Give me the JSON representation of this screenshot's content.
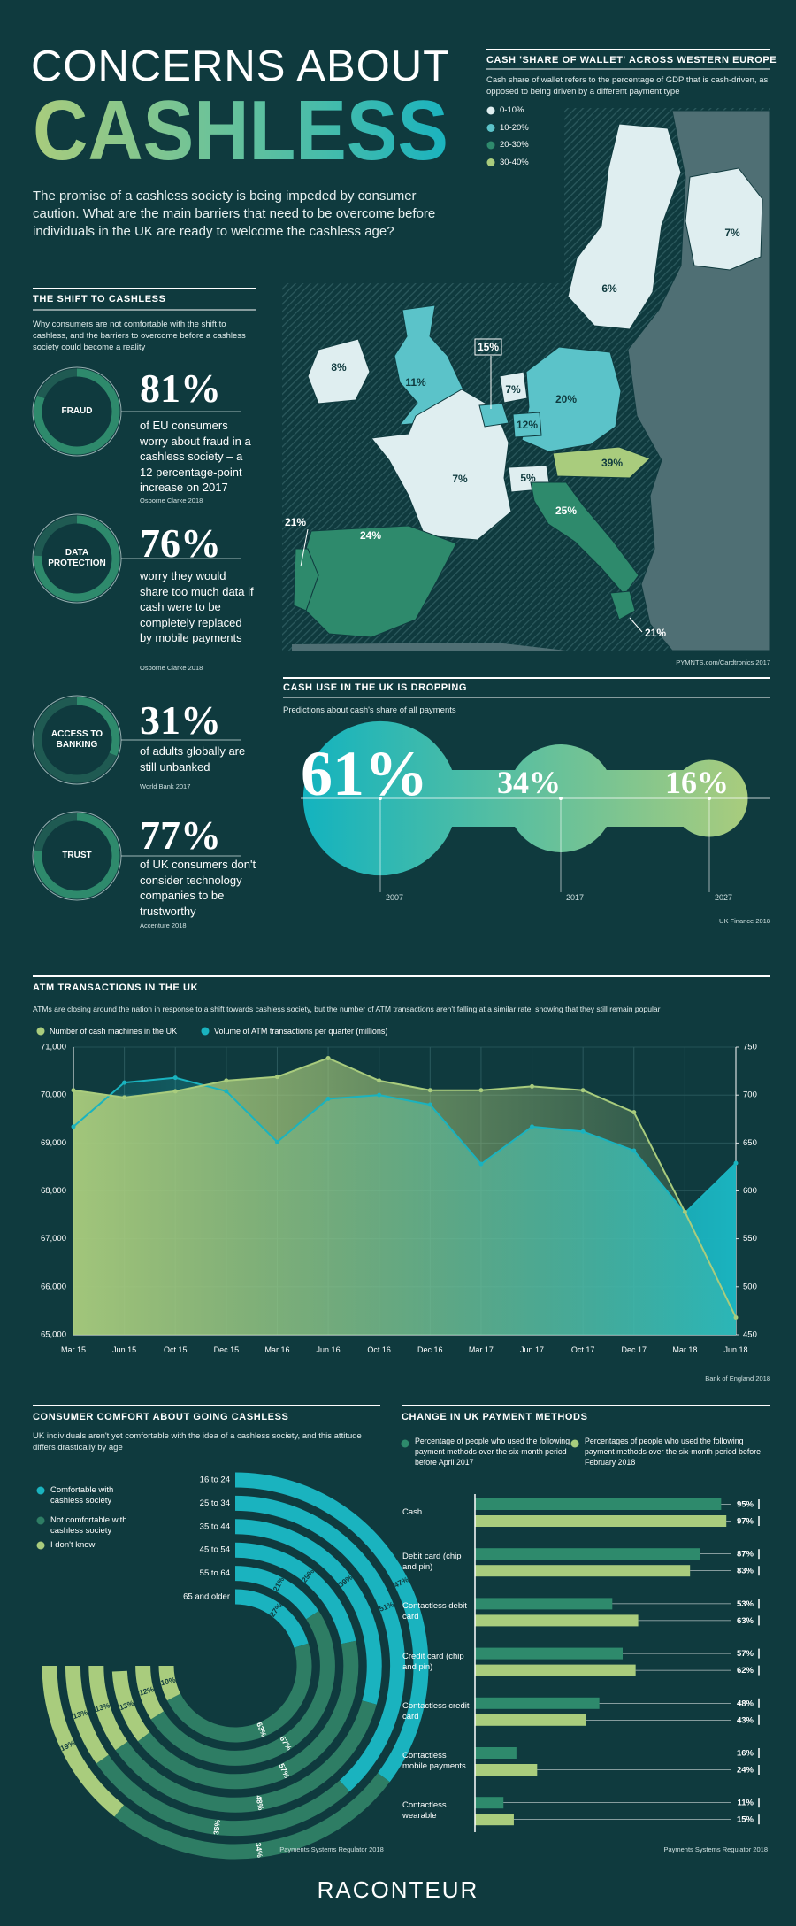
{
  "header": {
    "title_line1": "CONCERNS ABOUT",
    "title_line2": "CASHLESS",
    "intro": "The promise of a cashless society is being impeded by consumer caution. What are the main barriers that need to be overcome before individuals in the UK are ready to welcome the cashless age?"
  },
  "shift": {
    "title": "THE SHIFT TO CASHLESS",
    "subtitle": "Why consumers are not comfortable with the shift to cashless, and the barriers to overcome before a cashless society could become a reality",
    "stats": [
      {
        "label": "FRAUD",
        "value": 81,
        "value_label": "81%",
        "text": "of EU consumers worry about fraud in a cashless society – a 12 percentage-point increase on 2017",
        "source": "Osborne Clarke 2018"
      },
      {
        "label": "DATA PROTECTION",
        "value": 76,
        "value_label": "76%",
        "text": "worry they would share too much data if cash were to be completely replaced by mobile payments",
        "source": "Osborne Clarke 2018"
      },
      {
        "label": "ACCESS TO BANKING",
        "value": 31,
        "value_label": "31%",
        "text": "of adults globally are still unbanked",
        "source": "World Bank 2017"
      },
      {
        "label": "TRUST",
        "value": 77,
        "value_label": "77%",
        "text": "of UK consumers don't consider technology companies to be trustworthy",
        "source": "Accenture 2018"
      }
    ]
  },
  "map": {
    "title": "CASH 'SHARE OF WALLET' ACROSS WESTERN EUROPE",
    "description": "Cash share of wallet refers to the percentage of GDP that is cash-driven, as opposed to being driven by a different payment type",
    "legend": [
      {
        "label": "0-10%",
        "color": "#dfeef0"
      },
      {
        "label": "10-20%",
        "color": "#5bc3c9"
      },
      {
        "label": "20-30%",
        "color": "#2e8a6c"
      },
      {
        "label": "30-40%",
        "color": "#a9cc7d"
      }
    ],
    "labels": [
      "7%",
      "6%",
      "8%",
      "11%",
      "15%",
      "7%",
      "20%",
      "12%",
      "39%",
      "7%",
      "5%",
      "25%",
      "21%",
      "24%",
      "21%"
    ],
    "source": "PYMNTS.com/Cardtronics 2017"
  },
  "chart_data": [
    {
      "type": "blob",
      "title": "CASH USE IN THE UK IS DROPPING",
      "subtitle": "Predictions about cash's share of all payments",
      "categories": [
        "2007",
        "2017",
        "2027"
      ],
      "values": [
        61,
        34,
        16
      ],
      "value_labels": [
        "61%",
        "34%",
        "16%"
      ],
      "colors": [
        "#13b3bf",
        "#a9cc7d"
      ],
      "source": "UK Finance 2018"
    },
    {
      "type": "line",
      "title": "ATM TRANSACTIONS IN THE UK",
      "subtitle": "ATMs are closing around the nation in response to a shift towards cashless society, but the number of ATM transactions aren't falling at a similar rate, showing that they still remain popular",
      "categories": [
        "Mar 15",
        "Jun 15",
        "Oct 15",
        "Dec 15",
        "Mar 16",
        "Jun 16",
        "Oct 16",
        "Dec 16",
        "Mar 17",
        "Jun 17",
        "Oct 17",
        "Dec 17",
        "Mar 18",
        "Jun 18"
      ],
      "series": [
        {
          "name": "Number of cash machines in the UK",
          "color": "#a9cc7d",
          "values": [
            70100,
            69950,
            70080,
            70300,
            70380,
            70770,
            70300,
            70100,
            70100,
            70180,
            70100,
            69640,
            67560,
            65360
          ]
        },
        {
          "name": "Volume of ATM transactions per quarter (millions)",
          "color": "#1ab3bf",
          "axis": "y2",
          "values": [
            667,
            713,
            718,
            704,
            651,
            696,
            700,
            690,
            628,
            667,
            662,
            642,
            577,
            629
          ]
        }
      ],
      "ylim": [
        65000,
        71000
      ],
      "yticks": [
        {
          "value": 65000,
          "label": "65,000"
        },
        {
          "value": 66000,
          "label": "66,000"
        },
        {
          "value": 67000,
          "label": "67,000"
        },
        {
          "value": 68000,
          "label": "68,000"
        },
        {
          "value": 69000,
          "label": "69,000"
        },
        {
          "value": 70000,
          "label": "70,000"
        },
        {
          "value": 71000,
          "label": "71,000"
        }
      ],
      "y2lim": [
        450,
        750
      ],
      "y2ticks": [
        450,
        500,
        550,
        600,
        650,
        700,
        750
      ],
      "grid": true,
      "source": "Bank of England 2018"
    },
    {
      "type": "radial_bar",
      "title": "CONSUMER COMFORT ABOUT GOING CASHLESS",
      "subtitle": "UK individuals aren't yet comfortable with the idea of a cashless society, and this attitude differs drastically by age",
      "categories": [
        "16 to 24",
        "25 to 34",
        "35 to 44",
        "45 to 54",
        "55 to 64",
        "65 and older"
      ],
      "series": [
        {
          "name": "Comfortable with cashless society",
          "color": "#1ab3bf",
          "values": [
            47,
            51,
            39,
            29,
            21,
            27
          ],
          "value_labels": [
            "47%",
            "51%",
            "39%",
            "29%",
            "21%",
            "27%"
          ]
        },
        {
          "name": "Not comfortable with cashless society",
          "color": "#2e7d64",
          "values": [
            34,
            36,
            48,
            57,
            67,
            63
          ],
          "value_labels": [
            "34%",
            "36%",
            "48%",
            "57%",
            "67%",
            "63%"
          ]
        },
        {
          "name": "I don't know",
          "color": "#a9cc7d",
          "values": [
            19,
            13,
            13,
            13,
            12,
            10
          ],
          "value_labels": [
            "19%",
            "13%",
            "13%",
            "13%",
            "12%",
            "10%"
          ]
        }
      ],
      "source": "Payments Systems Regulator 2018"
    },
    {
      "type": "hbar",
      "title": "CHANGE IN UK PAYMENT METHODS",
      "categories": [
        "Cash",
        "Debit card (chip and pin)",
        "Contactless debit card",
        "Credit card (chip and pin)",
        "Contactless credit card",
        "Contactless mobile payments",
        "Contactless wearable"
      ],
      "series": [
        {
          "name": "Percentage of people who used the following payment methods over the six-month period before April 2017",
          "color": "#2e8a6c",
          "values": [
            95,
            87,
            53,
            57,
            48,
            16,
            11
          ],
          "value_labels": [
            "95%",
            "87%",
            "53%",
            "57%",
            "48%",
            "16%",
            "11%"
          ]
        },
        {
          "name": "Percentages of people who used the following payment methods over the six-month period before February 2018",
          "color": "#a9cc7d",
          "values": [
            97,
            83,
            63,
            62,
            43,
            24,
            15
          ],
          "value_labels": [
            "97%",
            "83%",
            "63%",
            "62%",
            "43%",
            "24%",
            "15%"
          ]
        }
      ],
      "xlim": [
        0,
        100
      ],
      "source": "Payments Systems Regulator 2018"
    }
  ],
  "footer": {
    "brand": "RACONTEUR"
  }
}
